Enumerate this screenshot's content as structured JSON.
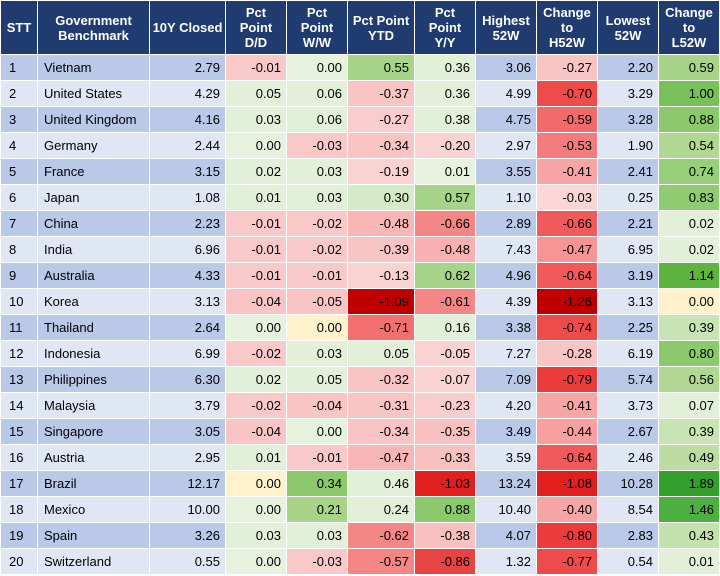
{
  "headers": {
    "stt": "STT",
    "benchmark": [
      "Government",
      "Benchmark"
    ],
    "closed": "10Y Closed",
    "dd": [
      "Pct",
      "Point",
      "D/D"
    ],
    "ww": [
      "Pct",
      "Point",
      "W/W"
    ],
    "ytd": [
      "Pct Point",
      "YTD"
    ],
    "yy": [
      "Pct",
      "Point",
      "Y/Y"
    ],
    "h52": [
      "Highest",
      "52W"
    ],
    "ch52": [
      "Change",
      "to",
      "H52W"
    ],
    "l52": [
      "Lowest",
      "52W"
    ],
    "cl52": [
      "Change to",
      "L52W"
    ]
  },
  "colors": {
    "header_bg": "#1f3b6f",
    "row_odd": "#b9c9e7",
    "row_even": "#dfe7f4"
  },
  "rows": [
    {
      "stt": "1",
      "name": "Vietnam",
      "closed": "2.79",
      "dd": "-0.01",
      "ww": "0.00",
      "ytd": "0.55",
      "yy": "0.36",
      "h52": "3.06",
      "ch52": "-0.27",
      "l52": "2.20",
      "cl52": "0.59",
      "bg": {
        "dd": "#f9c9c9",
        "ww": "#e6f2de",
        "ytd": "#a8d489",
        "yy": "#e2efd9",
        "ch52": "#f9c4c4",
        "cl52": "#a8d489"
      }
    },
    {
      "stt": "2",
      "name": "United States",
      "closed": "4.29",
      "dd": "0.05",
      "ww": "0.06",
      "ytd": "-0.37",
      "yy": "0.36",
      "h52": "4.99",
      "ch52": "-0.70",
      "l52": "3.29",
      "cl52": "1.00",
      "bg": {
        "dd": "#e2efd9",
        "ww": "#e2efd9",
        "ytd": "#f9c4c4",
        "yy": "#e2efd9",
        "ch52": "#ee4b4b",
        "cl52": "#78c05a"
      }
    },
    {
      "stt": "3",
      "name": "United Kingdom",
      "closed": "4.16",
      "dd": "0.03",
      "ww": "0.06",
      "ytd": "-0.27",
      "yy": "0.38",
      "h52": "4.75",
      "ch52": "-0.59",
      "l52": "3.28",
      "cl52": "0.88",
      "bg": {
        "dd": "#e2efd9",
        "ww": "#e2efd9",
        "ytd": "#f9cdcd",
        "yy": "#e2efd9",
        "ch52": "#f26b6b",
        "cl52": "#8bc96c"
      }
    },
    {
      "stt": "4",
      "name": "Germany",
      "closed": "2.44",
      "dd": "0.00",
      "ww": "-0.03",
      "ytd": "-0.34",
      "yy": "-0.20",
      "h52": "2.97",
      "ch52": "-0.53",
      "l52": "1.90",
      "cl52": "0.54",
      "bg": {
        "dd": "#e6f2de",
        "ww": "#f9c9c9",
        "ytd": "#f9c4c4",
        "yy": "#f9d2d2",
        "ch52": "#f47c7c",
        "cl52": "#b0d893"
      }
    },
    {
      "stt": "5",
      "name": "France",
      "closed": "3.15",
      "dd": "0.02",
      "ww": "0.03",
      "ytd": "-0.19",
      "yy": "0.01",
      "h52": "3.55",
      "ch52": "-0.41",
      "l52": "2.41",
      "cl52": "0.74",
      "bg": {
        "dd": "#e2efd9",
        "ww": "#e2efd9",
        "ytd": "#f9d2d2",
        "yy": "#e6f2de",
        "ch52": "#f8a5a5",
        "cl52": "#97ce78"
      }
    },
    {
      "stt": "6",
      "name": "Japan",
      "closed": "1.08",
      "dd": "0.01",
      "ww": "0.03",
      "ytd": "0.30",
      "yy": "0.57",
      "h52": "1.10",
      "ch52": "-0.03",
      "l52": "0.25",
      "cl52": "0.83",
      "bg": {
        "dd": "#e2efd9",
        "ww": "#e2efd9",
        "ytd": "#d5eac6",
        "yy": "#a8d489",
        "ch52": "#fad6d6",
        "cl52": "#8fcb70"
      }
    },
    {
      "stt": "7",
      "name": "China",
      "closed": "2.23",
      "dd": "-0.01",
      "ww": "-0.02",
      "ytd": "-0.48",
      "yy": "-0.66",
      "h52": "2.89",
      "ch52": "-0.66",
      "l52": "2.21",
      "cl52": "0.02",
      "bg": {
        "dd": "#f9c9c9",
        "ww": "#f9c9c9",
        "ytd": "#f8b6b6",
        "yy": "#f58686",
        "ch52": "#f05a5a",
        "cl52": "#e2efd9"
      }
    },
    {
      "stt": "8",
      "name": "India",
      "closed": "6.96",
      "dd": "-0.01",
      "ww": "-0.02",
      "ytd": "-0.39",
      "yy": "-0.48",
      "h52": "7.43",
      "ch52": "-0.47",
      "l52": "6.95",
      "cl52": "0.02",
      "bg": {
        "dd": "#f9c9c9",
        "ww": "#f9c9c9",
        "ytd": "#f9c4c4",
        "yy": "#f9b0b0",
        "ch52": "#f79494",
        "cl52": "#e2efd9"
      }
    },
    {
      "stt": "9",
      "name": "Australia",
      "closed": "4.33",
      "dd": "-0.01",
      "ww": "-0.01",
      "ytd": "-0.13",
      "yy": "0.62",
      "h52": "4.96",
      "ch52": "-0.64",
      "l52": "3.19",
      "cl52": "1.14",
      "bg": {
        "dd": "#f9c9c9",
        "ww": "#f9c9c9",
        "ytd": "#f9d2d2",
        "yy": "#a8d489",
        "ch52": "#f05a5a",
        "cl52": "#5fb33f"
      }
    },
    {
      "stt": "10",
      "name": "Korea",
      "closed": "3.13",
      "dd": "-0.04",
      "ww": "-0.05",
      "ytd": "-1.09",
      "yy": "-0.61",
      "h52": "4.39",
      "ch52": "-1.26",
      "l52": "3.13",
      "cl52": "0.00",
      "bg": {
        "dd": "#f9c4c4",
        "ww": "#f9c4c4",
        "ytd": "#c00000",
        "yy": "#f58686",
        "ch52": "#c00000",
        "cl52": "#fff2cc"
      }
    },
    {
      "stt": "11",
      "name": "Thailand",
      "closed": "2.64",
      "dd": "0.00",
      "ww": "0.00",
      "ytd": "-0.71",
      "yy": "0.16",
      "h52": "3.38",
      "ch52": "-0.74",
      "l52": "2.25",
      "cl52": "0.39",
      "bg": {
        "dd": "#e6f2de",
        "ww": "#fff2cc",
        "ytd": "#f27070",
        "yy": "#e2efd9",
        "ch52": "#ee4b4b",
        "cl52": "#c9e4b4"
      }
    },
    {
      "stt": "12",
      "name": "Indonesia",
      "closed": "6.99",
      "dd": "-0.02",
      "ww": "0.03",
      "ytd": "0.05",
      "yy": "-0.05",
      "h52": "7.27",
      "ch52": "-0.28",
      "l52": "6.19",
      "cl52": "0.80",
      "bg": {
        "dd": "#f9c9c9",
        "ww": "#e2efd9",
        "ytd": "#e2efd9",
        "yy": "#f9d2d2",
        "ch52": "#f9c4c4",
        "cl52": "#8bc96c"
      }
    },
    {
      "stt": "13",
      "name": "Philippines",
      "closed": "6.30",
      "dd": "0.02",
      "ww": "0.05",
      "ytd": "-0.32",
      "yy": "-0.07",
      "h52": "7.09",
      "ch52": "-0.79",
      "l52": "5.74",
      "cl52": "0.56",
      "bg": {
        "dd": "#e2efd9",
        "ww": "#e2efd9",
        "ytd": "#f9c4c4",
        "yy": "#f9d2d2",
        "ch52": "#ec3b3b",
        "cl52": "#b0d893"
      }
    },
    {
      "stt": "14",
      "name": "Malaysia",
      "closed": "3.79",
      "dd": "-0.02",
      "ww": "-0.04",
      "ytd": "-0.31",
      "yy": "-0.23",
      "h52": "4.20",
      "ch52": "-0.41",
      "l52": "3.73",
      "cl52": "0.07",
      "bg": {
        "dd": "#f9c9c9",
        "ww": "#f9c4c4",
        "ytd": "#f9c4c4",
        "yy": "#f9cdcd",
        "ch52": "#f8a5a5",
        "cl52": "#e2efd9"
      }
    },
    {
      "stt": "15",
      "name": "Singapore",
      "closed": "3.05",
      "dd": "-0.04",
      "ww": "0.00",
      "ytd": "-0.34",
      "yy": "-0.35",
      "h52": "3.49",
      "ch52": "-0.44",
      "l52": "2.67",
      "cl52": "0.39",
      "bg": {
        "dd": "#f9c4c4",
        "ww": "#e6f2de",
        "ytd": "#f9c4c4",
        "yy": "#f9c0c0",
        "ch52": "#f8a0a0",
        "cl52": "#c9e4b4"
      }
    },
    {
      "stt": "16",
      "name": "Austria",
      "closed": "2.95",
      "dd": "0.01",
      "ww": "-0.01",
      "ytd": "-0.47",
      "yy": "-0.33",
      "h52": "3.59",
      "ch52": "-0.64",
      "l52": "2.46",
      "cl52": "0.49",
      "bg": {
        "dd": "#e2efd9",
        "ww": "#f9c9c9",
        "ytd": "#f8b6b6",
        "yy": "#f9c0c0",
        "ch52": "#f05a5a",
        "cl52": "#bcdd a2"
      }
    },
    {
      "stt": "17",
      "name": "Brazil",
      "closed": "12.17",
      "dd": "0.00",
      "ww": "0.34",
      "ytd": "0.46",
      "yy": "-1.03",
      "h52": "13.24",
      "ch52": "-1.08",
      "l52": "10.28",
      "cl52": "1.89",
      "bg": {
        "dd": "#fff2cc",
        "ww": "#8bc96c",
        "ytd": "#e2efd9",
        "yy": "#e21f1f",
        "ch52": "#e21f1f",
        "cl52": "#33a02c"
      }
    },
    {
      "stt": "18",
      "name": "Mexico",
      "closed": "10.00",
      "dd": "0.00",
      "ww": "0.21",
      "ytd": "0.24",
      "yy": "0.88",
      "h52": "10.40",
      "ch52": "-0.40",
      "l52": "8.54",
      "cl52": "1.46",
      "bg": {
        "dd": "#e6f2de",
        "ww": "#a8d489",
        "ytd": "#e2efd9",
        "yy": "#8bc96c",
        "ch52": "#f8a5a5",
        "cl52": "#4caf3f"
      }
    },
    {
      "stt": "19",
      "name": "Spain",
      "closed": "3.26",
      "dd": "0.03",
      "ww": "0.03",
      "ytd": "-0.62",
      "yy": "-0.38",
      "h52": "4.07",
      "ch52": "-0.80",
      "l52": "2.83",
      "cl52": "0.43",
      "bg": {
        "dd": "#e2efd9",
        "ww": "#e2efd9",
        "ytd": "#f58686",
        "yy": "#f9c0c0",
        "ch52": "#ec3b3b",
        "cl52": "#c4e2ad"
      }
    },
    {
      "stt": "20",
      "name": "Switzerland",
      "closed": "0.55",
      "dd": "0.00",
      "ww": "-0.03",
      "ytd": "-0.57",
      "yy": "-0.86",
      "h52": "1.32",
      "ch52": "-0.77",
      "l52": "0.54",
      "cl52": "0.01",
      "bg": {
        "dd": "#e6f2de",
        "ww": "#f9c9c9",
        "ytd": "#f58686",
        "yy": "#e94444",
        "ch52": "#ee4b4b",
        "cl52": "#e2efd9"
      }
    }
  ]
}
